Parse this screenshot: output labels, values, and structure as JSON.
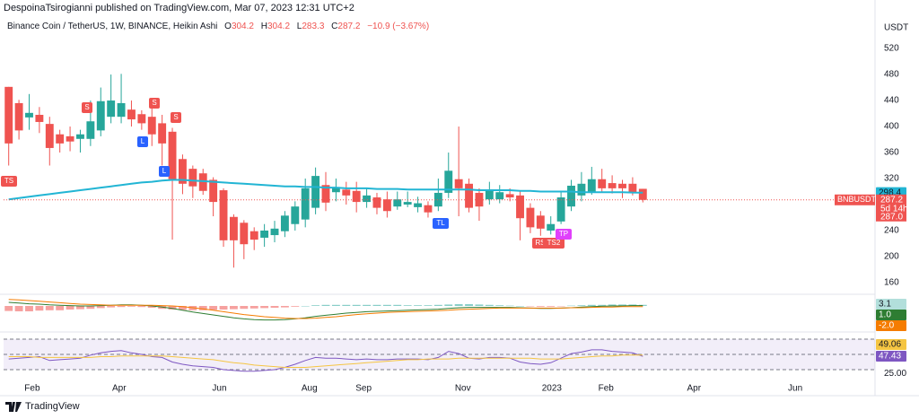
{
  "header": {
    "publisher": "DespoinaTsirogianni published on TradingView.com, Mar 07, 2023 12:31 UTC+2"
  },
  "legend": {
    "ohlc": [
      {
        "label": "O",
        "value": 304.2
      },
      {
        "label": "H",
        "value": 304.2
      },
      {
        "label": "L",
        "value": 283.3
      },
      {
        "label": "C",
        "value": 287.2
      }
    ],
    "change": "−10.9 (−3.67%)"
  },
  "footer": {
    "brand": "TradingView"
  },
  "chart_data": [
    {
      "type": "candlestick",
      "title": "Binance Coin / TetherUS, 1W, BINANCE, Heikin Ashi",
      "axis_unit": "USDT",
      "colors": {
        "up": "#26a69a",
        "down": "#ef5350"
      },
      "open": [
        461,
        436,
        414,
        418,
        404,
        388,
        385,
        381,
        381,
        394,
        415,
        415,
        426,
        419,
        415,
        405,
        392,
        350,
        335,
        328,
        318,
        302,
        261,
        252,
        239,
        229,
        233,
        239,
        250,
        257,
        275,
        310,
        299,
        303,
        301,
        284,
        291,
        288,
        277,
        280,
        276,
        279,
        277,
        298,
        319,
        312,
        298,
        288,
        288,
        296,
        294,
        275,
        263,
        240,
        254,
        277,
        294,
        298,
        319,
        313,
        312,
        312,
        304.2
      ],
      "high": [
        461,
        441,
        450,
        430,
        415,
        395,
        400,
        395,
        440,
        460,
        480,
        481,
        440,
        425,
        428,
        418,
        398,
        357,
        340,
        335,
        322,
        305,
        265,
        256,
        245,
        250,
        255,
        270,
        285,
        320,
        337,
        330,
        320,
        315,
        315,
        305,
        298,
        300,
        300,
        300,
        292,
        285,
        320,
        360,
        400,
        320,
        305,
        315,
        310,
        305,
        300,
        282,
        270,
        262,
        300,
        318,
        330,
        338,
        335,
        325,
        318,
        322,
        304.2
      ],
      "low": [
        340,
        380,
        395,
        390,
        340,
        360,
        362,
        360,
        370,
        385,
        405,
        405,
        400,
        395,
        370,
        340,
        226,
        296,
        290,
        295,
        262,
        215,
        183,
        196,
        210,
        215,
        222,
        230,
        240,
        245,
        265,
        270,
        285,
        280,
        268,
        275,
        265,
        260,
        272,
        276,
        268,
        260,
        270,
        290,
        262,
        268,
        255,
        280,
        282,
        285,
        225,
        236,
        232,
        234,
        250,
        270,
        285,
        295,
        300,
        297,
        290,
        294,
        283.3
      ],
      "close": [
        374,
        394,
        421,
        407,
        367,
        374,
        377,
        388,
        408,
        439,
        440,
        436,
        411,
        405,
        388,
        374,
        319,
        312,
        308,
        301,
        284,
        225,
        225,
        219,
        226,
        240,
        243,
        263,
        277,
        305,
        324,
        283,
        307,
        294,
        284,
        294,
        275,
        270,
        288,
        284,
        282,
        268,
        298,
        332,
        305,
        275,
        277,
        302,
        299,
        291,
        259,
        245,
        243,
        250,
        291,
        309,
        312,
        319,
        305,
        305,
        305,
        298,
        287.2
      ],
      "overlay": {
        "color": "#22b5d4",
        "values": [
          288,
          290,
          292,
          294,
          296,
          298,
          300,
          302,
          304,
          306,
          308,
          310,
          312,
          314,
          315,
          317,
          318,
          318,
          317,
          316,
          315,
          314,
          313,
          312,
          311,
          310,
          309,
          308,
          308,
          307,
          307,
          306,
          306,
          305,
          305,
          305,
          304,
          304,
          304,
          303,
          303,
          303,
          303,
          303,
          303,
          303,
          302,
          302,
          302,
          302,
          301,
          301,
          300,
          300,
          300,
          300,
          299,
          299,
          299,
          299,
          299,
          298.5,
          298.4
        ]
      },
      "ylim": [
        142,
        567
      ],
      "yticks": [
        160,
        200,
        240,
        320,
        360,
        400,
        440,
        480,
        520
      ],
      "grid": false,
      "xlim": [
        -0.5,
        84.7
      ],
      "xticks": [
        {
          "value": 2.3,
          "label": "Feb"
        },
        {
          "value": 10.8,
          "label": "Apr"
        },
        {
          "value": 20.6,
          "label": "Jun"
        },
        {
          "value": 29.4,
          "label": "Aug"
        },
        {
          "value": 34.7,
          "label": "Sep"
        },
        {
          "value": 44.4,
          "label": "Nov"
        },
        {
          "value": 53.1,
          "label": "2023"
        },
        {
          "value": 58.4,
          "label": "Feb"
        },
        {
          "value": 67.0,
          "label": "Apr"
        },
        {
          "value": 76.9,
          "label": "Jun"
        }
      ],
      "symbol_tag": "BNBUSDT",
      "countdown": "5d 14h",
      "extra_tag": {
        "value": 287,
        "label": "287.0"
      },
      "annotations": [
        "TS",
        "S",
        "S",
        "S",
        "L",
        "L",
        "TL",
        "RS",
        "TS2",
        "TP"
      ]
    },
    {
      "type": "macd",
      "histogram": {
        "up_color": "#26a69a",
        "down_color": "#ef5350",
        "values": [
          -14,
          -15,
          -15,
          -13,
          -12,
          -12,
          -10,
          -9,
          -8,
          -6,
          -4,
          -3,
          -2,
          -3,
          -5,
          -8,
          -10,
          -11,
          -12,
          -12,
          -11,
          -10,
          -9,
          -8,
          -7,
          -6,
          -5,
          -4,
          -2,
          0,
          2,
          3,
          3,
          3,
          3,
          3,
          3,
          3,
          3,
          2,
          2,
          2,
          3,
          4,
          5,
          5,
          4,
          3,
          2,
          1,
          0,
          -1,
          -2,
          -2,
          -1,
          1,
          2,
          3,
          3,
          4,
          4,
          4,
          3.1
        ]
      },
      "series": [
        {
          "color": "#2e7d32",
          "values": [
            10,
            8,
            6,
            5,
            3,
            2,
            1,
            0,
            0,
            1,
            2,
            3,
            3,
            2,
            0,
            -3,
            -7,
            -12,
            -17,
            -21,
            -25,
            -29,
            -33,
            -36,
            -38,
            -39,
            -39,
            -38,
            -36,
            -33,
            -29,
            -26,
            -23,
            -20,
            -18,
            -16,
            -15,
            -14,
            -13,
            -12,
            -11,
            -10,
            -9,
            -7,
            -5,
            -4,
            -4,
            -4,
            -4,
            -4,
            -5,
            -6,
            -7,
            -7,
            -6,
            -5,
            -3,
            -2,
            -1,
            0,
            0,
            1,
            1.0
          ],
          "value_labels": [
            null,
            null,
            null,
            null,
            null,
            null,
            null,
            null,
            null,
            null,
            null,
            null,
            null,
            null,
            null,
            null,
            null,
            null,
            null,
            null,
            null,
            null,
            null,
            null,
            null,
            null,
            null,
            null,
            null,
            null,
            null,
            null,
            null,
            null,
            null,
            null,
            null,
            null,
            null,
            null,
            null,
            null,
            null,
            null,
            null,
            null,
            null,
            null,
            null,
            null,
            null,
            null,
            null,
            null,
            null,
            null,
            null,
            null,
            null,
            null,
            null,
            null,
            "1.0"
          ]
        },
        {
          "color": "#f57c00",
          "values": [
            18,
            17,
            15,
            13,
            11,
            9,
            7,
            5,
            4,
            3,
            2,
            2,
            2,
            2,
            2,
            1,
            0,
            -2,
            -5,
            -8,
            -12,
            -16,
            -20,
            -24,
            -27,
            -30,
            -32,
            -34,
            -35,
            -35,
            -34,
            -32,
            -30,
            -27,
            -24,
            -22,
            -20,
            -18,
            -17,
            -16,
            -15,
            -14,
            -13,
            -12,
            -10,
            -9,
            -8,
            -7,
            -6,
            -6,
            -6,
            -6,
            -6,
            -6,
            -6,
            -5,
            -5,
            -4,
            -3,
            -3,
            -2,
            -2,
            -2.0
          ],
          "value_labels": [
            null,
            null,
            null,
            null,
            null,
            null,
            null,
            null,
            null,
            null,
            null,
            null,
            null,
            null,
            null,
            null,
            null,
            null,
            null,
            null,
            null,
            null,
            null,
            null,
            null,
            null,
            null,
            null,
            null,
            null,
            null,
            null,
            null,
            null,
            null,
            null,
            null,
            null,
            null,
            null,
            null,
            null,
            null,
            null,
            null,
            null,
            null,
            null,
            null,
            null,
            null,
            null,
            null,
            null,
            null,
            null,
            null,
            null,
            null,
            null,
            null,
            null,
            "-2.0"
          ]
        }
      ],
      "ylim": [
        -70,
        30
      ]
    },
    {
      "type": "rsi",
      "series": [
        {
          "color": "#7e57c2",
          "values": [
            44,
            45,
            46,
            47,
            42,
            43,
            44,
            45,
            49,
            52,
            54,
            55,
            52,
            50,
            47,
            46,
            40,
            37,
            35,
            34,
            33,
            30,
            29,
            28,
            28,
            29,
            30,
            33,
            37,
            42,
            46,
            45,
            45,
            44,
            43,
            44,
            43,
            43,
            44,
            44,
            44,
            43,
            46,
            54,
            51,
            45,
            44,
            46,
            46,
            45,
            40,
            38,
            37,
            39,
            45,
            51,
            53,
            56,
            56,
            54,
            53,
            52,
            47.43
          ]
        },
        {
          "color": "#f5c542",
          "values": [
            47,
            47,
            47,
            46,
            46,
            46,
            46,
            46,
            46,
            47,
            47,
            48,
            48,
            48,
            48,
            48,
            47,
            46,
            45,
            44,
            43,
            41,
            39,
            38,
            36,
            35,
            34,
            33,
            33,
            33,
            34,
            35,
            36,
            37,
            38,
            39,
            40,
            41,
            42,
            43,
            43,
            44,
            44,
            44,
            45,
            45,
            45,
            45,
            45,
            45,
            45,
            45,
            44,
            44,
            44,
            45,
            46,
            47,
            48,
            48,
            49,
            49,
            49.06
          ]
        }
      ],
      "levels": [
        70,
        50,
        30
      ],
      "ylim": [
        20.6,
        78.2
      ],
      "yticks": [
        {
          "value": 25,
          "label": "25.00"
        }
      ]
    }
  ]
}
